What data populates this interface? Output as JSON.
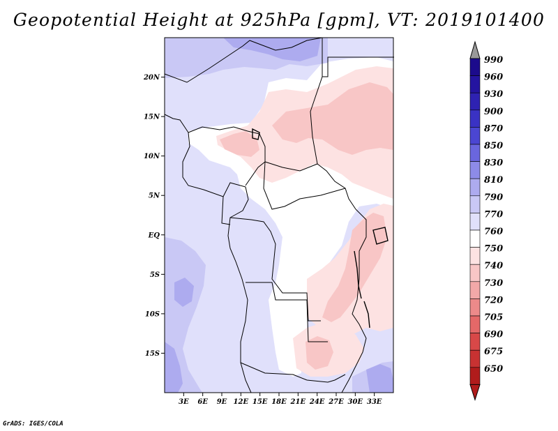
{
  "title": "Geopotential Height at 925hPa [gpm], VT: 2019101400",
  "credit": "GrADS: IGES/COLA",
  "map": {
    "lon_range": [
      0,
      36
    ],
    "lat_range": [
      -20,
      25
    ],
    "lat_ticks": [
      {
        "value": 20,
        "label": "20N"
      },
      {
        "value": 15,
        "label": "15N"
      },
      {
        "value": 10,
        "label": "10N"
      },
      {
        "value": 5,
        "label": "5N"
      },
      {
        "value": 0,
        "label": "EQ"
      },
      {
        "value": -5,
        "label": "5S"
      },
      {
        "value": -10,
        "label": "10S"
      },
      {
        "value": -15,
        "label": "15S"
      }
    ],
    "lon_ticks": [
      {
        "value": 3,
        "label": "3E"
      },
      {
        "value": 6,
        "label": "6E"
      },
      {
        "value": 9,
        "label": "9E"
      },
      {
        "value": 12,
        "label": "12E"
      },
      {
        "value": 15,
        "label": "15E"
      },
      {
        "value": 18,
        "label": "18E"
      },
      {
        "value": 21,
        "label": "21E"
      },
      {
        "value": 24,
        "label": "24E"
      },
      {
        "value": 27,
        "label": "27E"
      },
      {
        "value": 30,
        "label": "30E"
      },
      {
        "value": 33,
        "label": "33E"
      }
    ]
  },
  "colorbar": {
    "levels": [
      {
        "label": "990",
        "color": "#1c0b8c"
      },
      {
        "label": "960",
        "color": "#2414a0"
      },
      {
        "label": "930",
        "color": "#2e22b2"
      },
      {
        "label": "900",
        "color": "#3a32c4"
      },
      {
        "label": "870",
        "color": "#4b46d2"
      },
      {
        "label": "850",
        "color": "#6a66de"
      },
      {
        "label": "830",
        "color": "#8d8be8"
      },
      {
        "label": "810",
        "color": "#adabef"
      },
      {
        "label": "790",
        "color": "#c9c8f5"
      },
      {
        "label": "770",
        "color": "#e0e0fb"
      },
      {
        "label": "760",
        "color": "#ffffff"
      },
      {
        "label": "750",
        "color": "#fde2e2"
      },
      {
        "label": "740",
        "color": "#f8c6c6"
      },
      {
        "label": "730",
        "color": "#f2a8a8"
      },
      {
        "label": "720",
        "color": "#ec8a8a"
      },
      {
        "label": "705",
        "color": "#e46868"
      },
      {
        "label": "690",
        "color": "#d84848"
      },
      {
        "label": "675",
        "color": "#c83232"
      },
      {
        "label": "650",
        "color": "#b01c1c"
      }
    ],
    "top_arrow_color": "#999999",
    "bottom_arrow_color": "#b01c1c"
  }
}
